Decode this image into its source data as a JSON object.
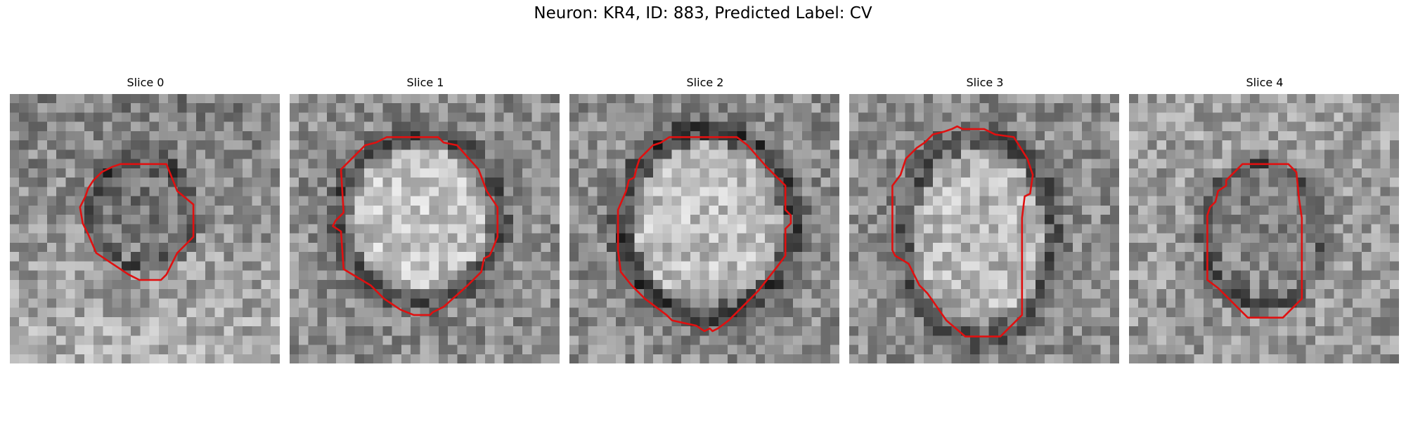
{
  "figure": {
    "title": "Neuron: KR4, ID: 883, Predicted Label: CV",
    "contour_color": "#e01010",
    "colormap": "gray",
    "panels": [
      {
        "label": "Slice 0"
      },
      {
        "label": "Slice 1"
      },
      {
        "label": "Slice 2"
      },
      {
        "label": "Slice 3"
      },
      {
        "label": "Slice 4"
      }
    ]
  }
}
